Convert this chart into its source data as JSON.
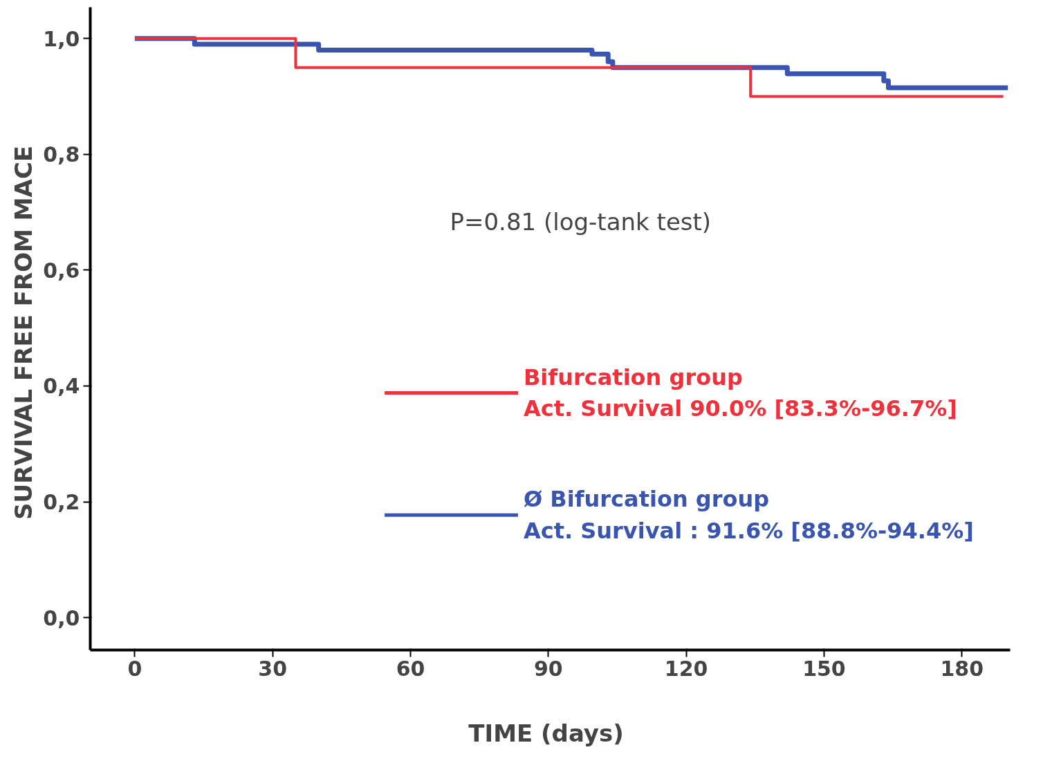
{
  "chart_data": {
    "type": "step",
    "xlabel": "TIME  (days)",
    "ylabel": "SURVIVAL FREE FROM  MACE",
    "annotations": [
      "P=0.81 (log-tank test)"
    ],
    "xlim": [
      -9.7,
      190.5
    ],
    "ylim": [
      -0.056,
      1.054
    ],
    "xticks": [
      0,
      30,
      60,
      90,
      120,
      150,
      180
    ],
    "yticks": [
      {
        "value": 0,
        "label": "0,0"
      },
      {
        "value": 0.2,
        "label": "0,2"
      },
      {
        "value": 0.4,
        "label": "0,4"
      },
      {
        "value": 0.6,
        "label": "0,6"
      },
      {
        "value": 0.8,
        "label": "0,8"
      },
      {
        "value": 1,
        "label": "1,0"
      }
    ],
    "grid": false,
    "legend": "right",
    "series": [
      {
        "name": "Bifurcation group\nAct. Survival 90.0% [83.3%-96.7%]",
        "color": "#f0303a",
        "x": [
          0,
          35,
          134,
          189
        ],
        "values": [
          1.0,
          0.95,
          0.9,
          0.9
        ]
      },
      {
        "name": "Ø Bifurcation group\nAct. Survival : 91.6% [88.8%-94.4%]",
        "color": "#3a55b0",
        "x": [
          0,
          13,
          40,
          99.5,
          103,
          104,
          142,
          163,
          164,
          190
        ],
        "values": [
          1.0,
          0.99,
          0.98,
          0.973,
          0.96,
          0.95,
          0.939,
          0.927,
          0.915,
          0.915
        ]
      }
    ]
  }
}
